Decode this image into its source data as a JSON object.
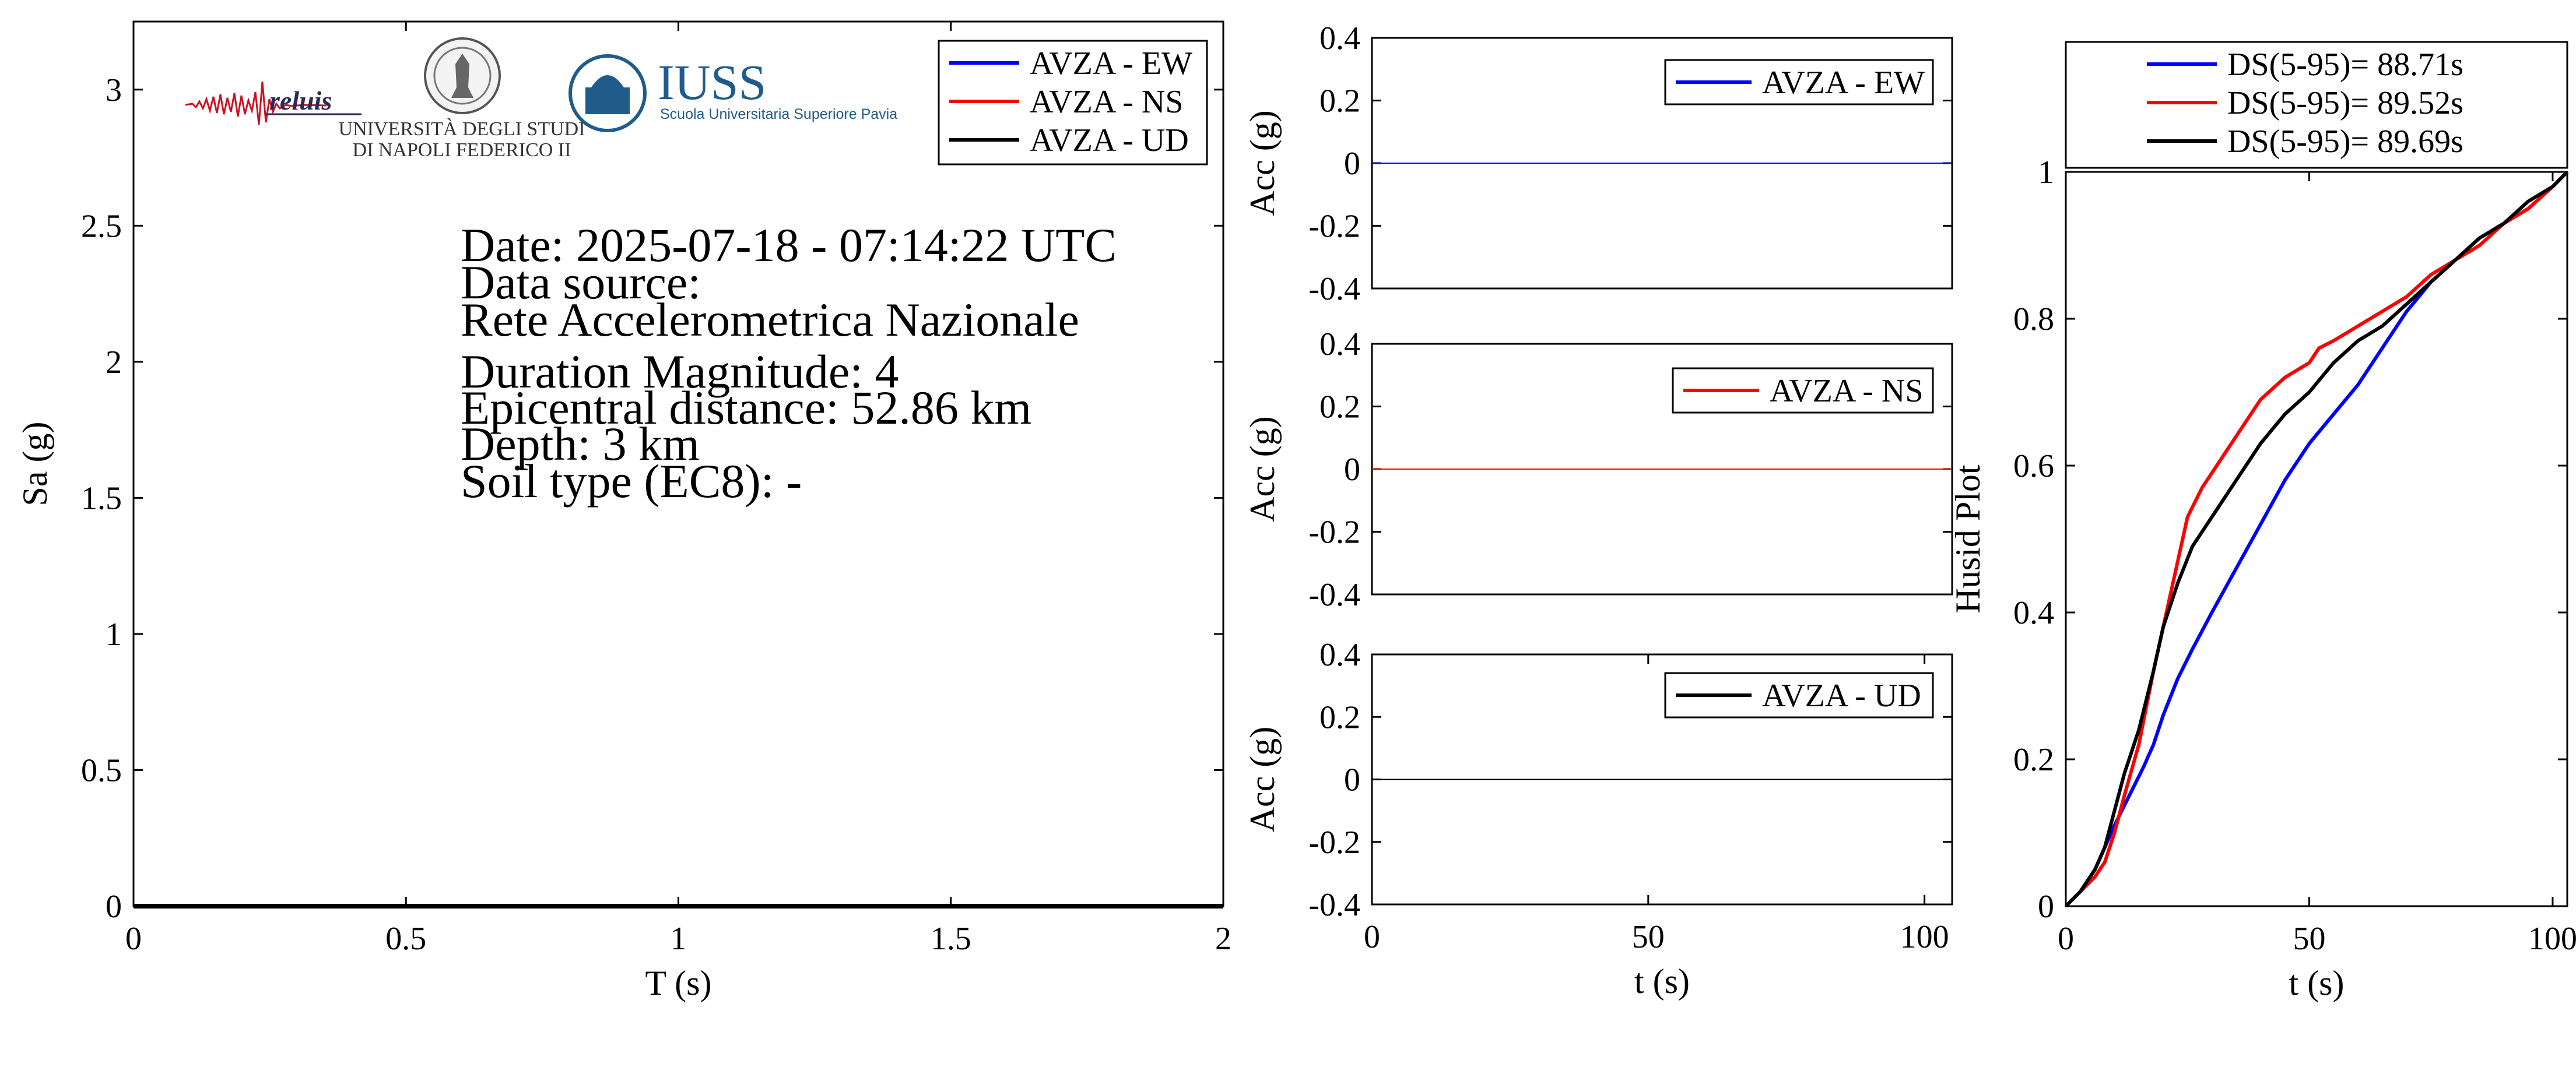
{
  "info": {
    "date": "Date: 2025-07-18 - 07:14:22 UTC",
    "data_source_label": "Data source:",
    "data_source": "Rete Accelerometrica Nazionale",
    "magnitude": "Duration Magnitude: 4",
    "distance": "Epicentral distance: 52.86 km",
    "depth": "Depth: 3 km",
    "soil": "Soil type (EC8): -"
  },
  "logos": {
    "reluis": "reluis",
    "unina_line1": "UNIVERSITÀ DEGLI STUDI",
    "unina_line2": "DI NAPOLI FEDERICO II",
    "iuss_title": "IUSS",
    "iuss_subtitle": "Scuola Universitaria Superiore Pavia"
  },
  "colors": {
    "ew": "#0000ff",
    "ns": "#ff0000",
    "ud": "#000000"
  },
  "chart_data": [
    {
      "id": "spectrum",
      "type": "line",
      "xlabel": "T (s)",
      "ylabel": "Sa (g)",
      "xlim": [
        0,
        2
      ],
      "ylim": [
        0,
        3.25
      ],
      "xticks": [
        0,
        0.5,
        1,
        1.5,
        2
      ],
      "xticklabels": [
        "0",
        "0.5",
        "1",
        "1.5",
        "2"
      ],
      "yticks": [
        0,
        0.5,
        1,
        1.5,
        2,
        2.5,
        3
      ],
      "yticklabels": [
        "0",
        "0.5",
        "1",
        "1.5",
        "2",
        "2.5",
        "3"
      ],
      "legend": "top-right",
      "series": [
        {
          "name": "AVZA - EW",
          "color": "#0000ff",
          "x": [
            0,
            2
          ],
          "y": [
            0,
            0
          ]
        },
        {
          "name": "AVZA - NS",
          "color": "#ff0000",
          "x": [
            0,
            2
          ],
          "y": [
            0,
            0
          ]
        },
        {
          "name": "AVZA - UD",
          "color": "#000000",
          "x": [
            0,
            2
          ],
          "y": [
            0,
            0
          ]
        }
      ]
    },
    {
      "id": "acc_ew",
      "type": "line",
      "xlabel": "",
      "ylabel": "Acc (g)",
      "xlim": [
        0,
        105
      ],
      "ylim": [
        -0.4,
        0.4
      ],
      "yticks": [
        -0.4,
        -0.2,
        0,
        0.2,
        0.4
      ],
      "yticklabels": [
        "-0.4",
        "-0.2",
        "0",
        "0.2",
        "0.4"
      ],
      "legend": "top-right",
      "series": [
        {
          "name": "AVZA - EW",
          "color": "#0000ff",
          "x": [
            0,
            105
          ],
          "y": [
            0,
            0
          ]
        }
      ]
    },
    {
      "id": "acc_ns",
      "type": "line",
      "xlabel": "",
      "ylabel": "Acc (g)",
      "xlim": [
        0,
        105
      ],
      "ylim": [
        -0.4,
        0.4
      ],
      "yticks": [
        -0.4,
        -0.2,
        0,
        0.2,
        0.4
      ],
      "yticklabels": [
        "-0.4",
        "-0.2",
        "0",
        "0.2",
        "0.4"
      ],
      "legend": "top-right",
      "series": [
        {
          "name": "AVZA - NS",
          "color": "#ff0000",
          "x": [
            0,
            105
          ],
          "y": [
            0,
            0
          ]
        }
      ]
    },
    {
      "id": "acc_ud",
      "type": "line",
      "xlabel": "t (s)",
      "ylabel": "Acc (g)",
      "xlim": [
        0,
        105
      ],
      "ylim": [
        -0.4,
        0.4
      ],
      "xticks": [
        0,
        50,
        100
      ],
      "xticklabels": [
        "0",
        "50",
        "100"
      ],
      "yticks": [
        -0.4,
        -0.2,
        0,
        0.2,
        0.4
      ],
      "yticklabels": [
        "-0.4",
        "-0.2",
        "0",
        "0.2",
        "0.4"
      ],
      "legend": "top-right",
      "series": [
        {
          "name": "AVZA - UD",
          "color": "#000000",
          "x": [
            0,
            105
          ],
          "y": [
            0,
            0
          ]
        }
      ]
    },
    {
      "id": "husid",
      "type": "line",
      "xlabel": "t (s)",
      "ylabel": "Husid Plot",
      "xlim": [
        0,
        103
      ],
      "ylim": [
        0,
        1
      ],
      "xticks": [
        0,
        50,
        100
      ],
      "xticklabels": [
        "0",
        "50",
        "100"
      ],
      "yticks": [
        0,
        0.2,
        0.4,
        0.6,
        0.8,
        1
      ],
      "yticklabels": [
        "0",
        "0.2",
        "0.4",
        "0.6",
        "0.8",
        "1"
      ],
      "legend": "top, outside",
      "series": [
        {
          "name": "DS(5-95)= 88.71s",
          "color": "#0000ff",
          "x": [
            0,
            3,
            6,
            8,
            10,
            13,
            16,
            18,
            20,
            23,
            26,
            30,
            35,
            40,
            45,
            50,
            55,
            60,
            65,
            70,
            75,
            80,
            85,
            90,
            95,
            100,
            103
          ],
          "y": [
            0,
            0.02,
            0.05,
            0.08,
            0.11,
            0.15,
            0.19,
            0.22,
            0.26,
            0.31,
            0.35,
            0.4,
            0.46,
            0.52,
            0.58,
            0.63,
            0.67,
            0.71,
            0.76,
            0.81,
            0.85,
            0.88,
            0.91,
            0.93,
            0.95,
            0.98,
            1.0
          ]
        },
        {
          "name": "DS(5-95)= 89.52s",
          "color": "#ff0000",
          "x": [
            0,
            3,
            6,
            8,
            10,
            12,
            15,
            18,
            20,
            22,
            25,
            28,
            30,
            35,
            40,
            45,
            50,
            52,
            55,
            60,
            65,
            70,
            75,
            80,
            85,
            90,
            95,
            100,
            103
          ],
          "y": [
            0,
            0.02,
            0.04,
            0.06,
            0.1,
            0.15,
            0.22,
            0.32,
            0.38,
            0.44,
            0.53,
            0.57,
            0.59,
            0.64,
            0.69,
            0.72,
            0.74,
            0.76,
            0.77,
            0.79,
            0.81,
            0.83,
            0.86,
            0.88,
            0.9,
            0.93,
            0.95,
            0.98,
            1.0
          ]
        },
        {
          "name": "DS(5-95)= 89.69s",
          "color": "#000000",
          "x": [
            0,
            3,
            6,
            8,
            10,
            12,
            15,
            18,
            20,
            23,
            26,
            30,
            35,
            40,
            45,
            50,
            55,
            60,
            65,
            70,
            75,
            80,
            85,
            90,
            95,
            100,
            103
          ],
          "y": [
            0,
            0.02,
            0.05,
            0.08,
            0.13,
            0.18,
            0.24,
            0.32,
            0.38,
            0.44,
            0.49,
            0.53,
            0.58,
            0.63,
            0.67,
            0.7,
            0.74,
            0.77,
            0.79,
            0.82,
            0.85,
            0.88,
            0.91,
            0.93,
            0.96,
            0.98,
            1.0
          ]
        }
      ]
    }
  ]
}
